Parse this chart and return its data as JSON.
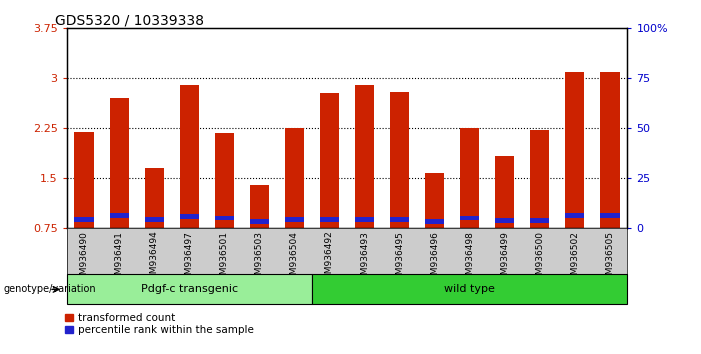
{
  "title": "GDS5320 / 10339338",
  "categories": [
    "GSM936490",
    "GSM936491",
    "GSM936494",
    "GSM936497",
    "GSM936501",
    "GSM936503",
    "GSM936504",
    "GSM936492",
    "GSM936493",
    "GSM936495",
    "GSM936496",
    "GSM936498",
    "GSM936499",
    "GSM936500",
    "GSM936502",
    "GSM936505"
  ],
  "red_values": [
    2.2,
    2.7,
    1.65,
    2.9,
    2.18,
    1.4,
    2.25,
    2.78,
    2.9,
    2.8,
    1.58,
    2.25,
    1.83,
    2.22,
    3.1,
    3.1
  ],
  "blue_bottoms": [
    0.85,
    0.91,
    0.85,
    0.89,
    0.87,
    0.82,
    0.85,
    0.85,
    0.85,
    0.85,
    0.82,
    0.87,
    0.83,
    0.83,
    0.91,
    0.91
  ],
  "blue_heights": [
    0.07,
    0.07,
    0.07,
    0.07,
    0.07,
    0.07,
    0.07,
    0.07,
    0.07,
    0.07,
    0.07,
    0.07,
    0.07,
    0.07,
    0.07,
    0.07
  ],
  "bar_color": "#cc2200",
  "blue_color": "#2222cc",
  "ylim_left": [
    0.75,
    3.75
  ],
  "ylim_right": [
    0,
    100
  ],
  "yticks_left": [
    0.75,
    1.5,
    2.25,
    3.0,
    3.75
  ],
  "ytick_labels_left": [
    "0.75",
    "1.5",
    "2.25",
    "3",
    "3.75"
  ],
  "yticks_right": [
    0,
    25,
    50,
    75,
    100
  ],
  "ytick_labels_right": [
    "0",
    "25",
    "50",
    "75",
    "100%"
  ],
  "hlines": [
    1.5,
    2.25,
    3.0
  ],
  "group1_label": "Pdgf-c transgenic",
  "group2_label": "wild type",
  "group1_count": 7,
  "group2_count": 9,
  "group1_color": "#99ee99",
  "group2_color": "#33cc33",
  "genotype_label": "genotype/variation",
  "legend_red": "transformed count",
  "legend_blue": "percentile rank within the sample",
  "bar_width": 0.55,
  "tick_bg_color": "#cccccc",
  "title_fontsize": 10,
  "axis_color_left": "#cc2200",
  "axis_color_right": "#0000cc"
}
